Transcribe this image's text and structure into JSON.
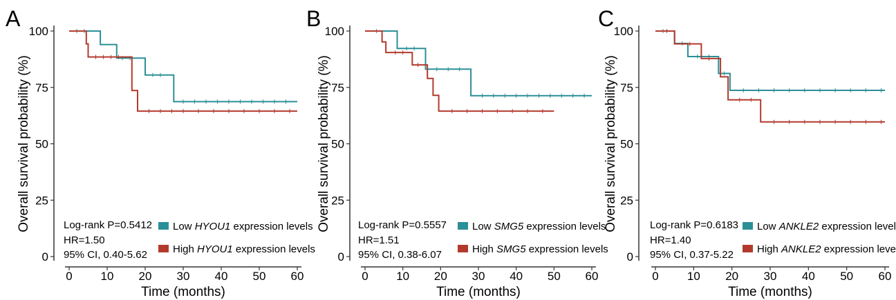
{
  "colors": {
    "low": "#2a8f97",
    "high": "#b23a2c",
    "axis": "#333333"
  },
  "chart_data": [
    {
      "type": "line",
      "panel_label": "A",
      "xlabel": "Time (months)",
      "ylabel": "Overall survival probability (%)",
      "xlim": [
        0,
        60
      ],
      "ylim": [
        0,
        100
      ],
      "xticks": [
        "0",
        "10",
        "20",
        "30",
        "40",
        "50",
        "60"
      ],
      "yticks": [
        "0",
        "25",
        "50",
        "75",
        "100"
      ],
      "annotations": [
        "Log-rank P=0.5412",
        "HR=1.50",
        "95% CI, 0.40-5.62"
      ],
      "series": [
        {
          "key": "low",
          "legend": {
            "prefix": "Low ",
            "gene": "HYOU1",
            "suffix": " expression levels"
          },
          "steps": [
            [
              0,
              100
            ],
            [
              8.2,
              100
            ],
            [
              8.2,
              94
            ],
            [
              12.5,
              94
            ],
            [
              12.5,
              88
            ],
            [
              20,
              88
            ],
            [
              20,
              80.5
            ],
            [
              27.5,
              80.5
            ],
            [
              27.5,
              68.7
            ],
            [
              60,
              68.7
            ]
          ],
          "censors": [
            [
              2,
              100
            ],
            [
              4,
              100
            ],
            [
              14,
              88
            ],
            [
              16,
              88
            ],
            [
              22,
              80.5
            ],
            [
              24,
              80.5
            ],
            [
              30,
              68.7
            ],
            [
              33,
              68.7
            ],
            [
              36,
              68.7
            ],
            [
              39,
              68.7
            ],
            [
              42,
              68.7
            ],
            [
              45,
              68.7
            ],
            [
              48,
              68.7
            ],
            [
              51,
              68.7
            ],
            [
              54,
              68.7
            ],
            [
              57,
              68.7
            ]
          ]
        },
        {
          "key": "high",
          "legend": {
            "prefix": "High ",
            "gene": "HYOU1",
            "suffix": " expression levels"
          },
          "steps": [
            [
              0,
              100
            ],
            [
              4.5,
              100
            ],
            [
              4.5,
              94.3
            ],
            [
              5,
              94.3
            ],
            [
              5,
              88.5
            ],
            [
              16.5,
              88.5
            ],
            [
              16.5,
              73.6
            ],
            [
              18,
              73.6
            ],
            [
              18,
              64.5
            ],
            [
              60,
              64.5
            ]
          ],
          "censors": [
            [
              7,
              88.5
            ],
            [
              9,
              88.5
            ],
            [
              11,
              88.5
            ],
            [
              13,
              88.5
            ],
            [
              21,
              64.5
            ],
            [
              24,
              64.5
            ],
            [
              27,
              64.5
            ],
            [
              30,
              64.5
            ],
            [
              34,
              64.5
            ],
            [
              38,
              64.5
            ],
            [
              42,
              64.5
            ],
            [
              46,
              64.5
            ],
            [
              50,
              64.5
            ],
            [
              54,
              64.5
            ],
            [
              58,
              64.5
            ]
          ]
        }
      ]
    },
    {
      "type": "line",
      "panel_label": "B",
      "xlabel": "Time (months)",
      "ylabel": "Overall survival probability (%)",
      "xlim": [
        0,
        60
      ],
      "ylim": [
        0,
        100
      ],
      "xticks": [
        "0",
        "10",
        "20",
        "30",
        "40",
        "50",
        "60"
      ],
      "yticks": [
        "0",
        "25",
        "50",
        "75",
        "100"
      ],
      "annotations": [
        "Log-rank P=0.5557",
        "HR=1.51",
        "95% CI, 0.38-6.07"
      ],
      "series": [
        {
          "key": "low",
          "legend": {
            "prefix": "Low ",
            "gene": "SMG5",
            "suffix": " expression levels"
          },
          "steps": [
            [
              0,
              100
            ],
            [
              8.5,
              100
            ],
            [
              8.5,
              92.3
            ],
            [
              16,
              92.3
            ],
            [
              16,
              83.1
            ],
            [
              28,
              83.1
            ],
            [
              28,
              71.3
            ],
            [
              60,
              71.3
            ]
          ],
          "censors": [
            [
              3,
              100
            ],
            [
              11,
              92.3
            ],
            [
              13,
              92.3
            ],
            [
              19,
              83.1
            ],
            [
              22,
              83.1
            ],
            [
              25,
              83.1
            ],
            [
              31,
              71.3
            ],
            [
              34,
              71.3
            ],
            [
              37,
              71.3
            ],
            [
              40,
              71.3
            ],
            [
              43,
              71.3
            ],
            [
              46,
              71.3
            ],
            [
              49,
              71.3
            ],
            [
              52,
              71.3
            ],
            [
              55,
              71.3
            ],
            [
              58,
              71.3
            ]
          ]
        },
        {
          "key": "high",
          "legend": {
            "prefix": "High ",
            "gene": "SMG5",
            "suffix": " expression levels"
          },
          "steps": [
            [
              0,
              100
            ],
            [
              4.5,
              100
            ],
            [
              4.5,
              95.2
            ],
            [
              5.5,
              95.2
            ],
            [
              5.5,
              90.5
            ],
            [
              12.5,
              90.5
            ],
            [
              12.5,
              85
            ],
            [
              16.5,
              85
            ],
            [
              16.5,
              79
            ],
            [
              18,
              79
            ],
            [
              18,
              71.5
            ],
            [
              19.5,
              71.5
            ],
            [
              19.5,
              64.5
            ],
            [
              50,
              64.5
            ]
          ],
          "censors": [
            [
              8,
              90.5
            ],
            [
              10,
              90.5
            ],
            [
              14,
              85
            ],
            [
              23,
              64.5
            ],
            [
              27,
              64.5
            ],
            [
              31,
              64.5
            ],
            [
              35,
              64.5
            ],
            [
              39,
              64.5
            ],
            [
              43,
              64.5
            ],
            [
              47,
              64.5
            ]
          ]
        }
      ]
    },
    {
      "type": "line",
      "panel_label": "C",
      "xlabel": "Time (months)",
      "ylabel": "Overall survival probability (%)",
      "xlim": [
        0,
        60
      ],
      "ylim": [
        0,
        100
      ],
      "xticks": [
        "0",
        "10",
        "20",
        "30",
        "40",
        "50",
        "60"
      ],
      "yticks": [
        "0",
        "25",
        "50",
        "75",
        "100"
      ],
      "annotations": [
        "Log-rank P=0.6183",
        "HR=1.40",
        "95% CI, 0.37-5.22"
      ],
      "series": [
        {
          "key": "low",
          "legend": {
            "prefix": "Low ",
            "gene": "ANKLE2",
            "suffix": " expression levels"
          },
          "steps": [
            [
              0,
              100
            ],
            [
              5,
              100
            ],
            [
              5,
              94.5
            ],
            [
              8.5,
              94.5
            ],
            [
              8.5,
              88.7
            ],
            [
              16.5,
              88.7
            ],
            [
              16.5,
              81.2
            ],
            [
              19.5,
              81.2
            ],
            [
              19.5,
              73.7
            ],
            [
              60,
              73.7
            ]
          ],
          "censors": [
            [
              2,
              100
            ],
            [
              7,
              94.5
            ],
            [
              11,
              88.7
            ],
            [
              14,
              88.7
            ],
            [
              18,
              81.2
            ],
            [
              23,
              73.7
            ],
            [
              27,
              73.7
            ],
            [
              31,
              73.7
            ],
            [
              35,
              73.7
            ],
            [
              39,
              73.7
            ],
            [
              43,
              73.7
            ],
            [
              47,
              73.7
            ],
            [
              51,
              73.7
            ],
            [
              55,
              73.7
            ],
            [
              59,
              73.7
            ]
          ]
        },
        {
          "key": "high",
          "legend": {
            "prefix": "High ",
            "gene": "ANKLE2",
            "suffix": " expression levels"
          },
          "steps": [
            [
              0,
              100
            ],
            [
              5,
              100
            ],
            [
              5,
              94.3
            ],
            [
              12,
              94.3
            ],
            [
              12,
              87.8
            ],
            [
              17,
              87.8
            ],
            [
              17,
              79.7
            ],
            [
              19,
              79.7
            ],
            [
              19,
              69.5
            ],
            [
              27.5,
              69.5
            ],
            [
              27.5,
              59.7
            ],
            [
              60,
              59.7
            ]
          ],
          "censors": [
            [
              3,
              100
            ],
            [
              9,
              94.3
            ],
            [
              14,
              87.8
            ],
            [
              22,
              69.5
            ],
            [
              25,
              69.5
            ],
            [
              31,
              59.7
            ],
            [
              35,
              59.7
            ],
            [
              39,
              59.7
            ],
            [
              43,
              59.7
            ],
            [
              47,
              59.7
            ],
            [
              51,
              59.7
            ],
            [
              55,
              59.7
            ],
            [
              59,
              59.7
            ]
          ]
        }
      ]
    }
  ]
}
